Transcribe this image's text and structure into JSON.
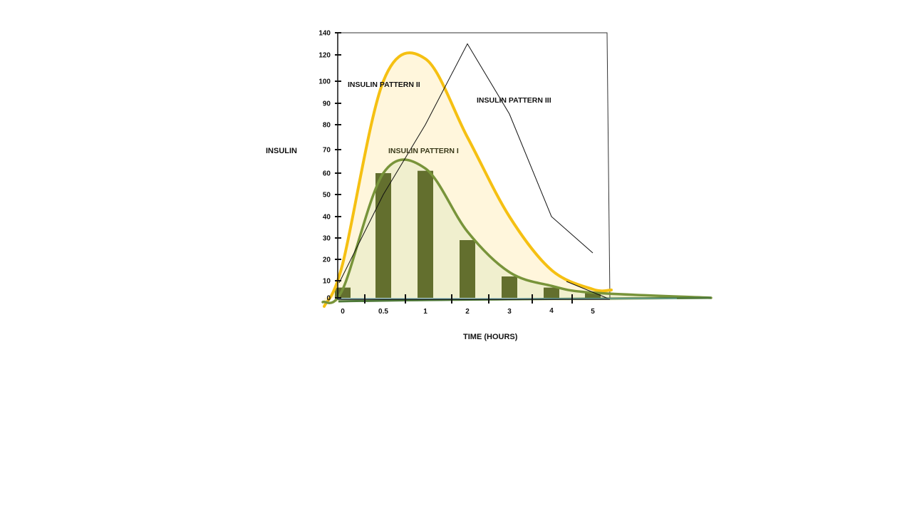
{
  "chart_data": {
    "type": "line",
    "title": "",
    "xlabel": "TIME (HOURS)",
    "ylabel": "INSULIN",
    "ylim": [
      0,
      140
    ],
    "grid": false,
    "legend": "none",
    "x_ticks": [
      "0",
      "0.5",
      "1",
      "2",
      "3",
      "4",
      "5"
    ],
    "y_ticks": [
      "0",
      "10",
      "20",
      "30",
      "40",
      "50",
      "60",
      "70",
      "80",
      "90",
      "100",
      "120",
      "140"
    ],
    "bars": {
      "color": "#636f2e",
      "categories": [
        "0",
        "0.5",
        "1",
        "2",
        "3",
        "4",
        "5"
      ],
      "values": [
        6,
        60,
        61,
        29,
        12,
        6,
        3
      ]
    },
    "series": [
      {
        "name": "INSULIN PATTERN I",
        "color": "#78943a",
        "fill": "#eeeecc",
        "x": [
          "0",
          "0.5",
          "1",
          "2",
          "3",
          "4",
          "5"
        ],
        "y": [
          5,
          60,
          62,
          33,
          14,
          7,
          3
        ]
      },
      {
        "name": "INSULIN PATTERN II",
        "color": "#f5c012",
        "fill": "#fff6dc",
        "x": [
          "0",
          "0.5",
          "1",
          "2",
          "3",
          "4",
          "5"
        ],
        "y": [
          18,
          100,
          117,
          75,
          40,
          15,
          5
        ]
      },
      {
        "name": "INSULIN PATTERN III",
        "color": "#111111",
        "x": [
          "0",
          "0.5",
          "1",
          "2",
          "3",
          "4",
          "5"
        ],
        "y": [
          8,
          50,
          80,
          130,
          85,
          40,
          23
        ]
      }
    ]
  }
}
